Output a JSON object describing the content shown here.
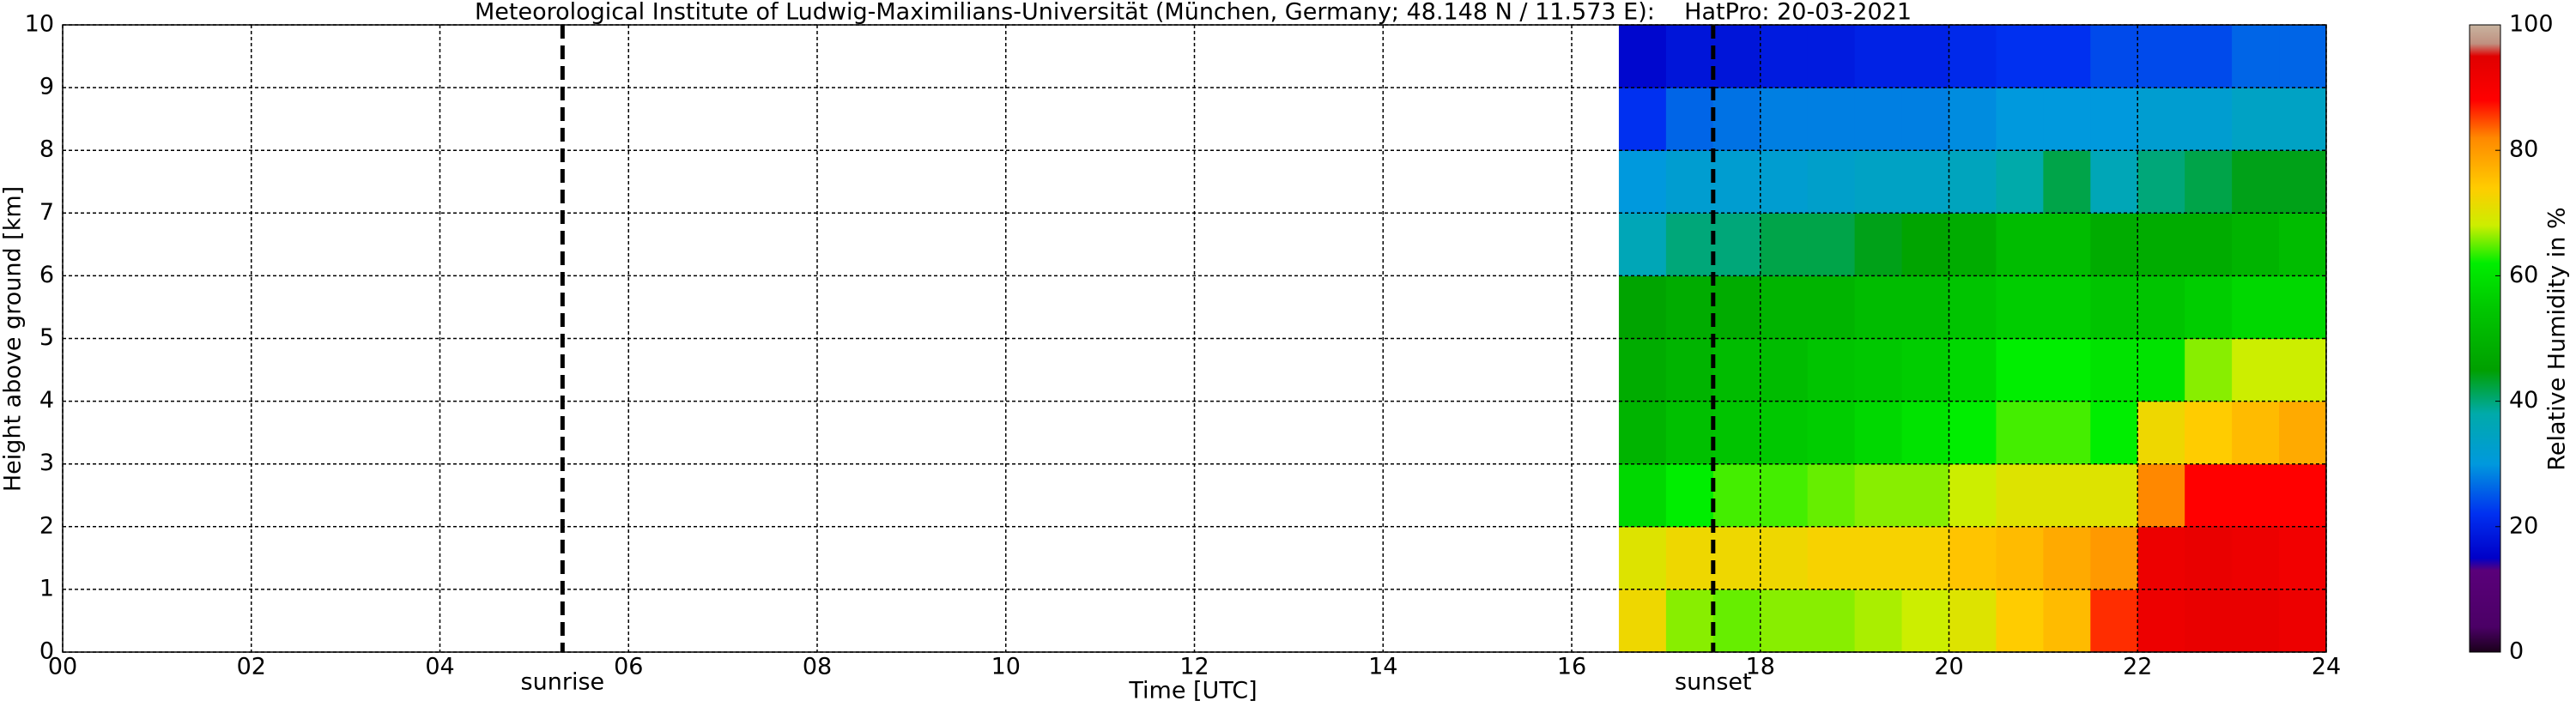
{
  "chart_data": {
    "type": "heatmap",
    "title": "Meteorological Institute of Ludwig-Maximilians-Universität (München, Germany; 48.148 N / 11.573 E):    HatPro: 20-03-2021",
    "xlabel": "Time [UTC]",
    "ylabel": "Height above ground [km]",
    "colorbar_label": "Relative Humidity in %",
    "xlim": [
      0,
      24
    ],
    "ylim": [
      0,
      10
    ],
    "clim": [
      0,
      100
    ],
    "xticks": [
      {
        "value": 0,
        "label": "00"
      },
      {
        "value": 2,
        "label": "02"
      },
      {
        "value": 4,
        "label": "04"
      },
      {
        "value": 6,
        "label": "06"
      },
      {
        "value": 8,
        "label": "08"
      },
      10,
      12,
      14,
      16,
      18,
      20,
      22,
      24
    ],
    "yticks": [
      0,
      1,
      2,
      3,
      4,
      5,
      6,
      7,
      8,
      9,
      10
    ],
    "cticks": [
      0,
      20,
      40,
      60,
      80,
      100
    ],
    "grid": true,
    "annotations": [
      {
        "x": 5.3,
        "text": "sunrise"
      },
      {
        "x": 17.5,
        "text": "sunset"
      }
    ],
    "colorscale": [
      [
        0,
        "#1a001a"
      ],
      [
        4,
        "#4b0066"
      ],
      [
        13,
        "#5a007a"
      ],
      [
        15,
        "#0000c8"
      ],
      [
        22,
        "#0030f0"
      ],
      [
        30,
        "#0099dd"
      ],
      [
        38,
        "#00aaaa"
      ],
      [
        45,
        "#00a000"
      ],
      [
        55,
        "#00c800"
      ],
      [
        62,
        "#00ee00"
      ],
      [
        68,
        "#ccee00"
      ],
      [
        74,
        "#ffcc00"
      ],
      [
        82,
        "#ff8800"
      ],
      [
        88,
        "#ff0000"
      ],
      [
        95,
        "#e00000"
      ],
      [
        97,
        "#c09080"
      ],
      [
        100,
        "#c8b4a0"
      ]
    ],
    "x_edges": [
      16.5,
      17,
      17.5,
      18,
      18.5,
      19,
      19.5,
      20,
      20.5,
      21,
      21.5,
      22,
      22.5,
      23,
      23.5,
      24
    ],
    "y_edges": [
      0,
      1,
      2,
      3,
      4,
      5,
      6,
      7,
      8,
      9,
      10
    ],
    "z": [
      [
        72,
        66,
        65,
        66,
        66,
        67,
        68,
        70,
        74,
        76,
        86,
        92,
        93,
        93,
        92
      ],
      [
        70,
        72,
        72,
        72,
        73,
        73,
        73,
        75,
        76,
        78,
        80,
        92,
        93,
        92,
        91
      ],
      [
        58,
        62,
        64,
        64,
        65,
        66,
        66,
        68,
        70,
        70,
        70,
        82,
        88,
        88,
        88
      ],
      [
        50,
        53,
        54,
        55,
        56,
        58,
        60,
        62,
        64,
        64,
        62,
        72,
        74,
        76,
        78
      ],
      [
        48,
        50,
        52,
        52,
        54,
        55,
        56,
        58,
        62,
        62,
        60,
        60,
        66,
        68,
        68
      ],
      [
        46,
        48,
        48,
        50,
        50,
        52,
        52,
        54,
        56,
        56,
        54,
        54,
        56,
        58,
        58
      ],
      [
        36,
        40,
        40,
        42,
        42,
        44,
        46,
        48,
        52,
        52,
        48,
        48,
        48,
        50,
        52
      ],
      [
        30,
        32,
        32,
        32,
        33,
        34,
        34,
        35,
        38,
        42,
        36,
        40,
        42,
        44,
        44
      ],
      [
        22,
        26,
        27,
        28,
        28,
        28,
        28,
        29,
        30,
        30,
        30,
        32,
        32,
        34,
        34
      ],
      [
        16,
        18,
        18,
        19,
        19,
        20,
        20,
        21,
        22,
        22,
        24,
        24,
        24,
        26,
        26
      ]
    ]
  }
}
